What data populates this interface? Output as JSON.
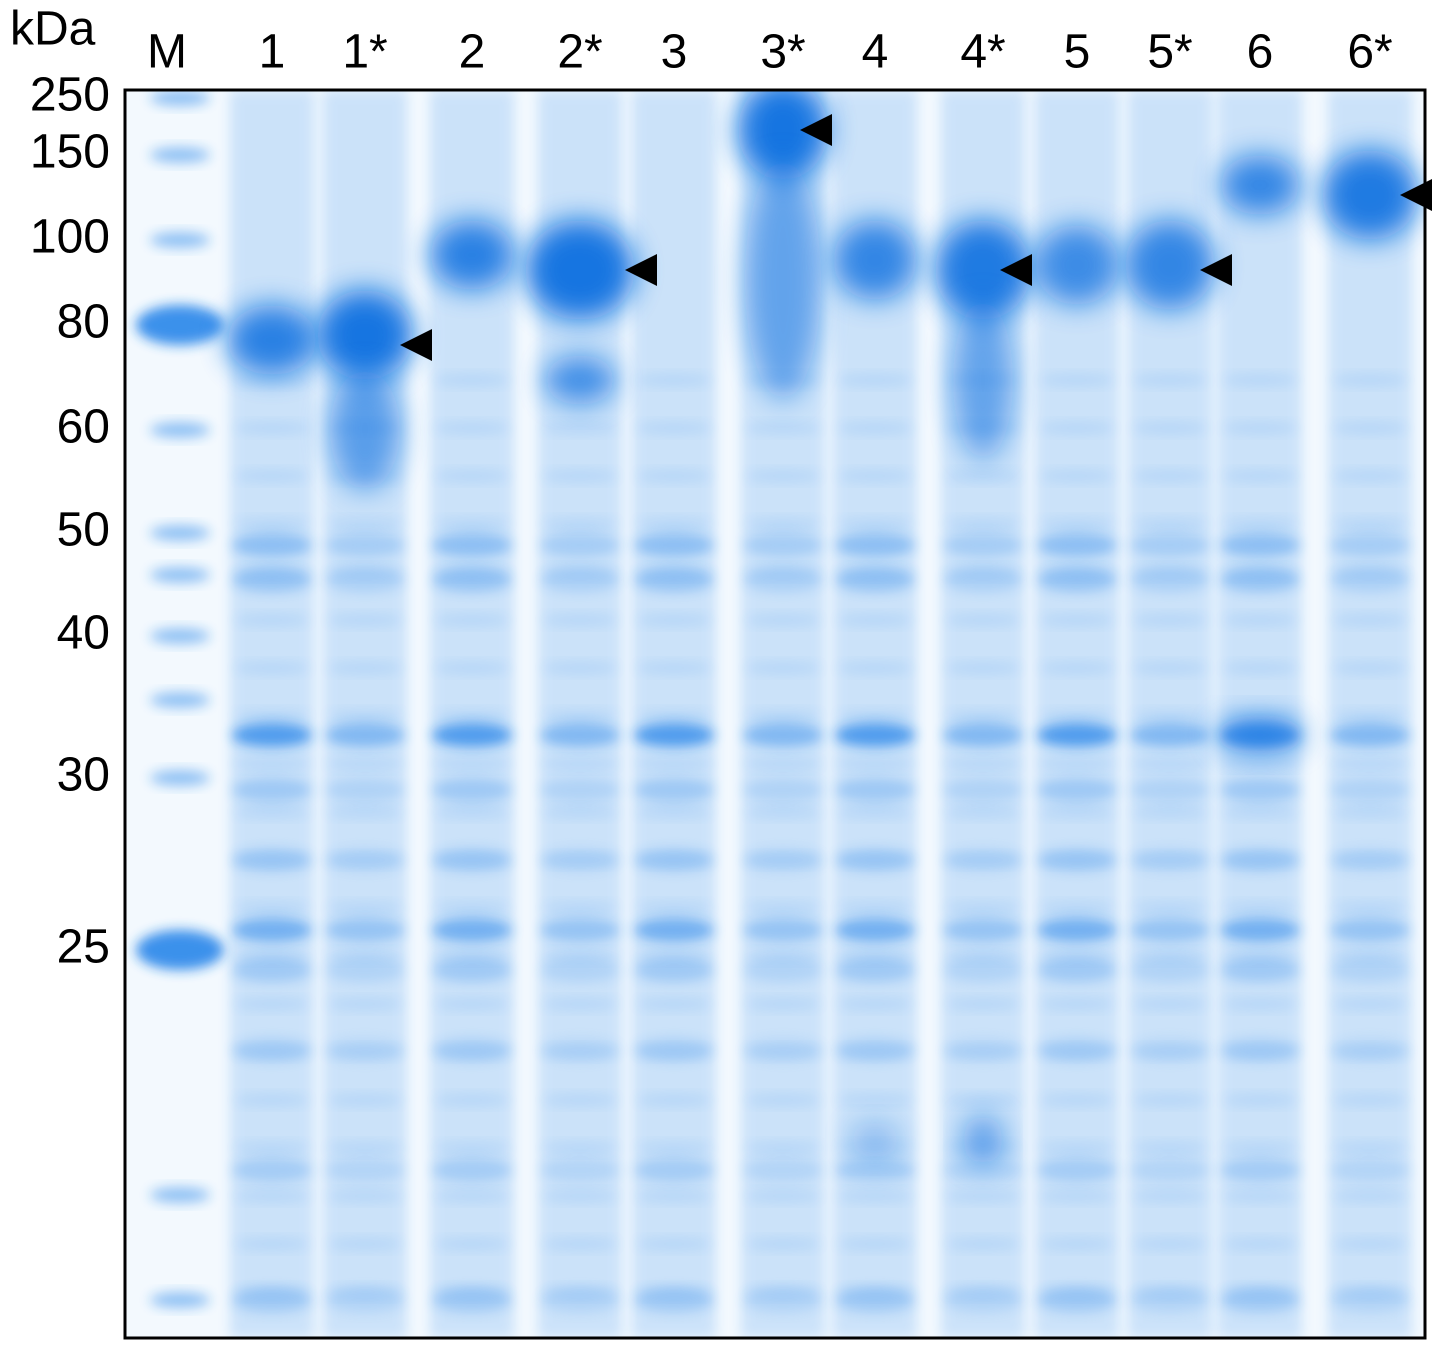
{
  "unit_label": "kDa",
  "lanes": [
    "M",
    "1",
    "1*",
    "2",
    "2*",
    "3",
    "3*",
    "4",
    "4*",
    "5",
    "5*",
    "6",
    "6*"
  ],
  "markers": [
    "250",
    "150",
    "100",
    "80",
    "60",
    "50",
    "40",
    "30",
    "25"
  ]
}
